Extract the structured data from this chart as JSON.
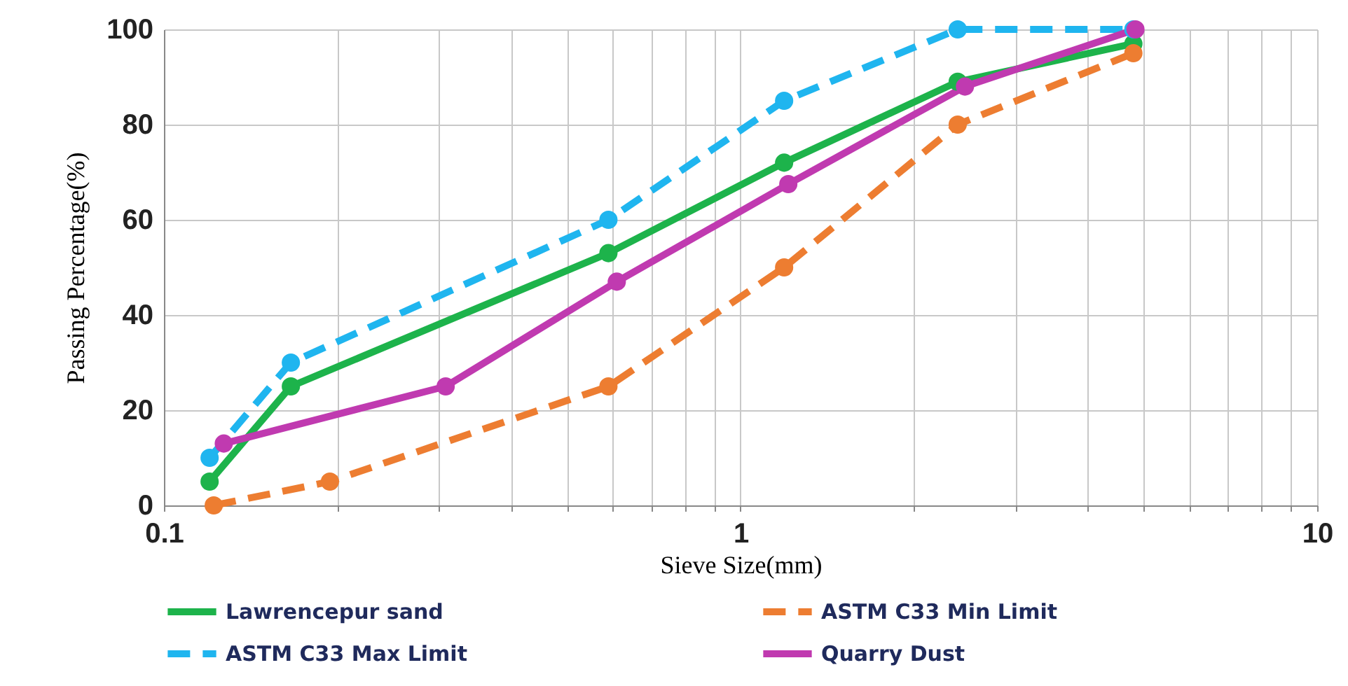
{
  "chart_data": {
    "type": "line",
    "xlabel": "Sieve Size(mm)",
    "ylabel": "Passing Percentage(%)",
    "log": "x",
    "grid": true,
    "marker": "circle",
    "legend": "bottom",
    "xlim": [
      0.1,
      10
    ],
    "ylim": [
      0,
      100
    ],
    "yticks": [
      0,
      20,
      40,
      60,
      80,
      100
    ],
    "xticks": [
      0.1,
      {
        "value": 0.2,
        "label": null
      },
      {
        "value": 0.3,
        "label": null
      },
      {
        "value": 0.4,
        "label": null
      },
      {
        "value": 0.5,
        "label": null
      },
      {
        "value": 0.6,
        "label": null
      },
      {
        "value": 0.7,
        "label": null
      },
      {
        "value": 0.8,
        "label": null
      },
      {
        "value": 0.9,
        "label": null
      },
      1,
      {
        "value": 2,
        "label": null
      },
      {
        "value": 3,
        "label": null
      },
      {
        "value": 4,
        "label": null
      },
      {
        "value": 5,
        "label": null
      },
      {
        "value": 6,
        "label": null
      },
      {
        "value": 7,
        "label": null
      },
      {
        "value": 8,
        "label": null
      },
      {
        "value": 9,
        "label": null
      },
      10
    ],
    "series": [
      {
        "name": "Lawrencepur sand",
        "color": "#1db34b",
        "line_style": "solid",
        "x": [
          0.12,
          0.166,
          0.59,
          1.19,
          2.38,
          4.8
        ],
        "values": [
          5,
          25,
          53,
          72,
          89,
          97
        ]
      },
      {
        "name": "ASTM C33 Min Limit",
        "color": "#ed7d31",
        "line_style": "dashed",
        "x": [
          0.122,
          0.194,
          0.59,
          1.19,
          2.38,
          4.8
        ],
        "values": [
          0,
          5,
          25,
          50,
          80,
          95
        ]
      },
      {
        "name": "ASTM C33 Max Limit",
        "color": "#1fb5ef",
        "line_style": "dashed",
        "x": [
          0.12,
          0.166,
          0.59,
          1.19,
          2.38,
          4.8
        ],
        "values": [
          10,
          30,
          60,
          85,
          100,
          100
        ]
      },
      {
        "name": "Quarry Dust",
        "color": "#c03ab0",
        "line_style": "solid",
        "x": [
          0.127,
          0.308,
          0.61,
          1.21,
          2.45,
          4.84
        ],
        "values": [
          13,
          25,
          47,
          67.5,
          88,
          100
        ]
      }
    ]
  }
}
